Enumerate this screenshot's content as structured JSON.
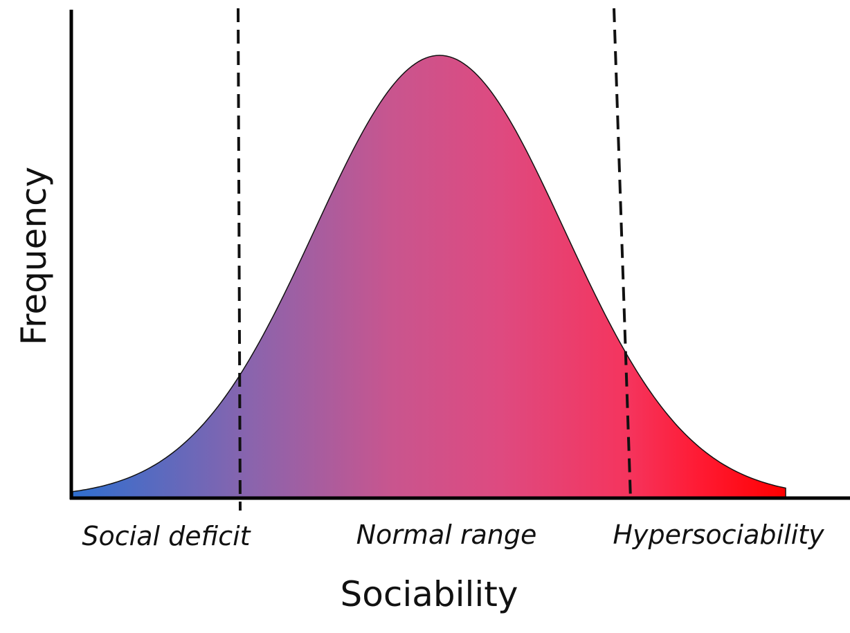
{
  "axes": {
    "y_label": "Frequency",
    "x_label": "Sociability"
  },
  "regions": [
    {
      "label": "Social deficit"
    },
    {
      "label": "Normal range"
    },
    {
      "label": "Hypersociability"
    }
  ]
}
